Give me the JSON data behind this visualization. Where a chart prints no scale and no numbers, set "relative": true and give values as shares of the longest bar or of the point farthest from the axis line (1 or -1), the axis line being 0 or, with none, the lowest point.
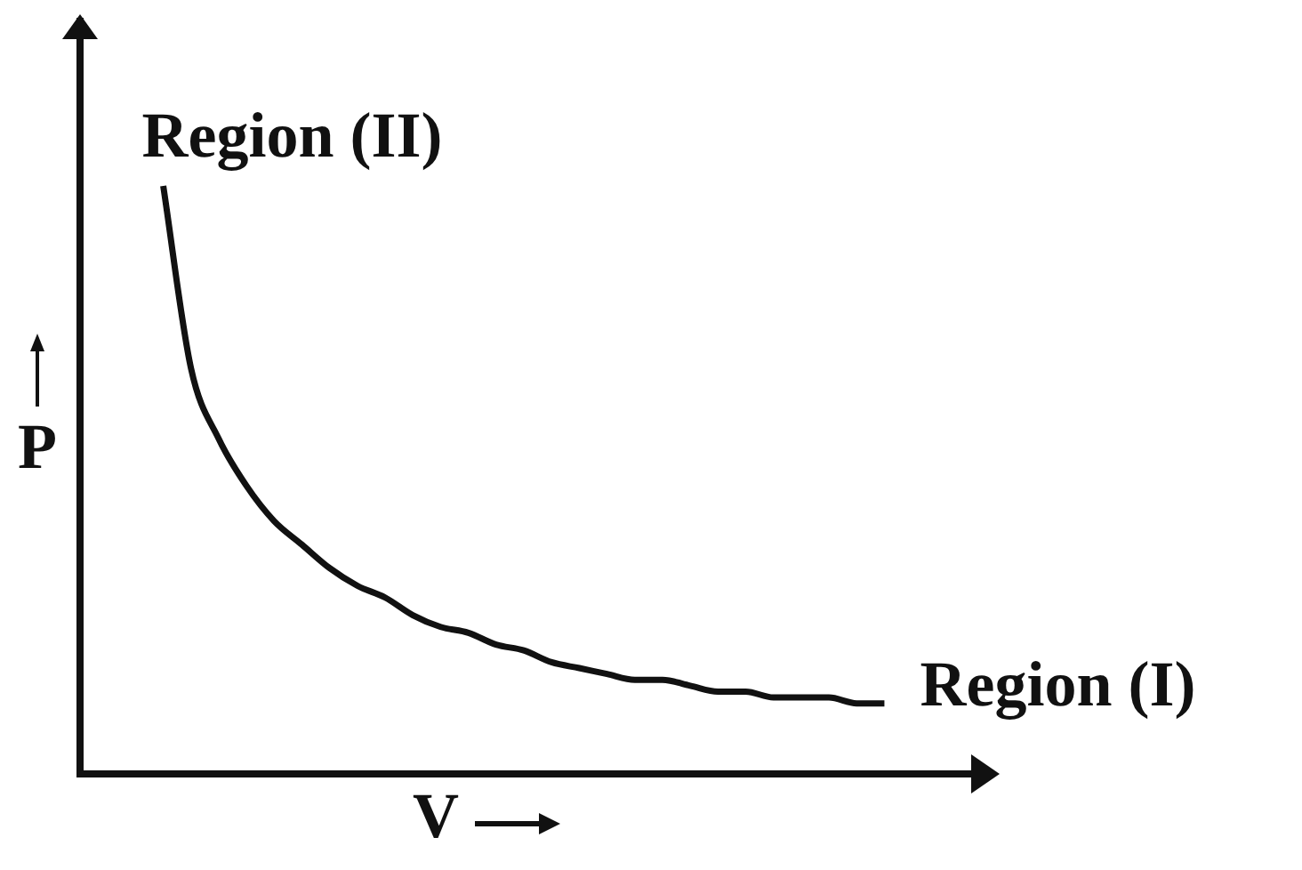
{
  "chart_data": {
    "type": "line",
    "relative": true,
    "xlabel": "V",
    "ylabel": "P",
    "color": "#111111",
    "categories": [
      null,
      null,
      null,
      null,
      null,
      null,
      null,
      null,
      null,
      null,
      null,
      null,
      null,
      null,
      null,
      null,
      null,
      null,
      null,
      null,
      null,
      null,
      null,
      null,
      null,
      null,
      null,
      null,
      null,
      null,
      null,
      null,
      null
    ],
    "values": [
      null,
      null,
      null,
      1,
      0.69,
      0.57,
      0.49,
      0.43,
      0.39,
      0.35,
      0.32,
      0.3,
      0.27,
      0.25,
      0.24,
      0.22,
      0.21,
      0.19,
      0.18,
      0.17,
      0.16,
      0.16,
      0.15,
      0.14,
      0.14,
      0.13,
      0.13,
      0.13,
      0.12,
      0.12,
      null,
      null,
      null
    ],
    "annotations": [
      "Region (II)",
      "Region (I)"
    ]
  }
}
